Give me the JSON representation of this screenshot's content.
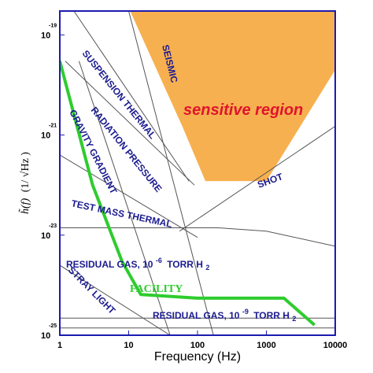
{
  "chart_data": {
    "type": "line",
    "xlabel": "Frequency (Hz)",
    "ylabel": "h̃(f) (1/√Hz)",
    "x_scale": "log",
    "y_scale": "log",
    "xlim": [
      1,
      10000
    ],
    "ylim": [
      1e-25,
      3e-19
    ],
    "x_ticks": [
      {
        "value": 1,
        "label": "1"
      },
      {
        "value": 10,
        "label": "10"
      },
      {
        "value": 100,
        "label": "100"
      },
      {
        "value": 1000,
        "label": "1000"
      },
      {
        "value": 10000,
        "label": "10000"
      }
    ],
    "y_ticks": [
      {
        "value": 1e-19,
        "base": "10",
        "exp": "-19"
      },
      {
        "value": 1e-21,
        "base": "10",
        "exp": "-21"
      },
      {
        "value": 1e-23,
        "base": "10",
        "exp": "-23"
      },
      {
        "value": 1e-25,
        "base": "10",
        "exp": "-25"
      }
    ],
    "grid": false,
    "sensitive_region": {
      "label": "sensitive region",
      "color": "#f7b04f",
      "points": [
        [
          10.5,
          3e-19
        ],
        [
          900,
          3e-19
        ],
        [
          10000,
          3e-19
        ],
        [
          10000,
          2e-20
        ],
        [
          1000,
          1.2e-22
        ],
        [
          130,
          1.2e-22
        ],
        [
          60,
          1.5e-21
        ]
      ]
    },
    "facility_curve": {
      "label": "FACILITY",
      "color": "#2ecc2e",
      "points": [
        [
          1,
          3e-20
        ],
        [
          3,
          1e-22
        ],
        [
          8,
          3e-24
        ],
        [
          15,
          6.5e-25
        ],
        [
          100,
          5.5e-25
        ],
        [
          1800,
          5.5e-25
        ],
        [
          5000,
          1.6e-25
        ]
      ]
    },
    "noise_lines": [
      {
        "name": "SUSPENSION THERMAL",
        "points": [
          [
            1.6,
            3e-19
          ],
          [
            75,
            1.2e-22
          ]
        ]
      },
      {
        "name": "RADIATION PRESSURE",
        "points": [
          [
            1.2,
            3e-20
          ],
          [
            90,
            1e-22
          ]
        ]
      },
      {
        "name": "GRAVITY GRADIENT",
        "points": [
          [
            1.9,
            3e-20
          ],
          [
            40,
            1e-25
          ]
        ]
      },
      {
        "name": "TEST MASS THERMAL",
        "points": [
          [
            1,
            4e-22
          ],
          [
            100,
            9e-24
          ]
        ]
      },
      {
        "name": "SEISMIC",
        "points": [
          [
            10,
            3e-19
          ],
          [
            170,
            1e-25
          ]
        ]
      },
      {
        "name": "SHOT",
        "points": [
          [
            55,
            1.2e-23
          ],
          [
            10000,
            1.5e-21
          ]
        ]
      },
      {
        "name": "STRAY LIGHT",
        "points": [
          [
            1,
            2.5e-24
          ],
          [
            40,
            1e-25
          ]
        ]
      },
      {
        "name": "RESIDUAL GAS, 10-6 TORR H2",
        "points": [
          [
            1,
            1.4e-23
          ],
          [
            200,
            1.4e-23
          ],
          [
            1000,
            1.2e-23
          ],
          [
            10000,
            6e-24
          ]
        ]
      },
      {
        "name": "RESIDUAL GAS, 10-9 TORR H2",
        "points": [
          [
            1,
            2.2e-25
          ],
          [
            10000,
            2.2e-25
          ]
        ]
      },
      {
        "name": "",
        "points": [
          [
            1,
            1.4e-25
          ],
          [
            10000,
            1.4e-25
          ]
        ]
      }
    ],
    "labels": {
      "suspension_thermal": "SUSPENSION THERMAL",
      "radiation_pressure": "RADIATION PRESSURE",
      "gravity_gradient": "GRAVITY GRADIENT",
      "seismic": "SEISMIC",
      "test_mass_thermal": "TEST MASS THERMAL",
      "shot": "SHOT",
      "residual_gas_6_text": "RESIDUAL GAS, 10",
      "residual_gas_6_exp": "-6",
      "residual_gas_6_unit": "TORR H",
      "residual_gas_6_sub": "2",
      "stray_light": "STRAY LIGHT",
      "facility": "FACILITY",
      "residual_gas_9_text": "RESIDUAL GAS, 10",
      "residual_gas_9_exp": "-9",
      "residual_gas_9_unit": "TORR H",
      "residual_gas_9_sub": "2"
    },
    "ylabel_parts": {
      "func": "h̃(f)",
      "unit_open": "(1/",
      "unit_root": "√Hz",
      "unit_close": ")"
    }
  }
}
